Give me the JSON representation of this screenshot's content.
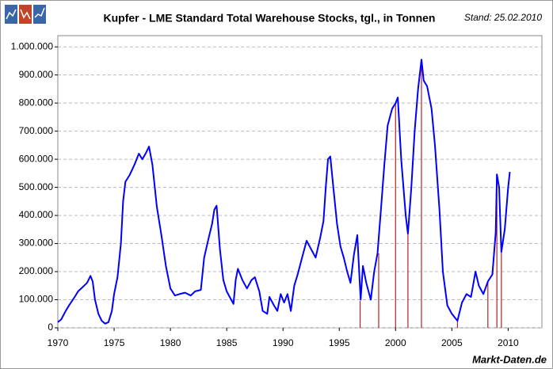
{
  "chart_data": {
    "type": "line",
    "title": "Kupfer - LME Standard Total Warehouse Stocks, tgl., in Tonnen",
    "subtitle": "Stand: 25.02.2010",
    "source": "Markt-Daten.de",
    "xlim": [
      1970,
      2013
    ],
    "xticks": [
      1970,
      1975,
      1980,
      1985,
      1990,
      1995,
      2000,
      2005,
      2010
    ],
    "ylim": [
      0,
      1040000
    ],
    "yticks": [
      0,
      {
        "value": 100000,
        "label": "100.000"
      },
      {
        "value": 200000,
        "label": "200.000"
      },
      {
        "value": 300000,
        "label": "300.000"
      },
      {
        "value": 400000,
        "label": "400.000"
      },
      {
        "value": 500000,
        "label": "500.000"
      },
      {
        "value": 600000,
        "label": "600.000"
      },
      {
        "value": 700000,
        "label": "700.000"
      },
      {
        "value": 800000,
        "label": "800.000"
      },
      {
        "value": 900000,
        "label": "900.000"
      },
      {
        "value": 1000000,
        "label": "1.000.000"
      }
    ],
    "grid": true,
    "series": [
      {
        "color": "#0000ff",
        "x": [
          1970.0,
          1970.3,
          1970.7,
          1971.0,
          1971.5,
          1971.8,
          1972.2,
          1972.6,
          1972.9,
          1973.1,
          1973.3,
          1973.6,
          1973.9,
          1974.2,
          1974.5,
          1974.8,
          1975.0,
          1975.3,
          1975.6,
          1975.8,
          1976.0,
          1976.4,
          1976.8,
          1977.2,
          1977.5,
          1977.8,
          1978.1,
          1978.4,
          1978.8,
          1979.2,
          1979.6,
          1980.0,
          1980.4,
          1980.8,
          1981.3,
          1981.8,
          1982.2,
          1982.7,
          1983.0,
          1983.4,
          1983.7,
          1983.9,
          1984.1,
          1984.4,
          1984.7,
          1985.0,
          1985.4,
          1985.6,
          1985.8,
          1986.0,
          1986.4,
          1986.8,
          1987.2,
          1987.5,
          1987.9,
          1988.2,
          1988.6,
          1988.8,
          1989.2,
          1989.5,
          1989.8,
          1990.1,
          1990.4,
          1990.7,
          1991.0,
          1991.3,
          1991.7,
          1992.1,
          1992.5,
          1992.9,
          1993.3,
          1993.6,
          1993.8,
          1994.0,
          1994.2,
          1994.5,
          1994.8,
          1995.1,
          1995.4,
          1995.7,
          1996.0,
          1996.3,
          1996.6,
          1996.9,
          1997.1,
          1997.4,
          1997.8,
          1998.1,
          1998.4,
          1998.7,
          1999.0,
          1999.3,
          1999.7,
          2000.0,
          2000.2,
          2000.5,
          2000.9,
          2001.1,
          2001.4,
          2001.7,
          2002.0,
          2002.3,
          2002.5,
          2002.8,
          2003.2,
          2003.5,
          2003.9,
          2004.2,
          2004.6,
          2005.0,
          2005.5,
          2005.9,
          2006.3,
          2006.7,
          2007.1,
          2007.4,
          2007.8,
          2008.2,
          2008.6,
          2008.9,
          2009.0,
          2009.2,
          2009.4,
          2009.7,
          2010.0,
          2010.15
        ],
        "values": [
          20000,
          30000,
          60000,
          80000,
          110000,
          130000,
          145000,
          160000,
          185000,
          165000,
          100000,
          50000,
          25000,
          15000,
          20000,
          60000,
          120000,
          180000,
          300000,
          450000,
          520000,
          545000,
          580000,
          620000,
          600000,
          620000,
          645000,
          580000,
          430000,
          330000,
          220000,
          140000,
          115000,
          120000,
          125000,
          115000,
          130000,
          135000,
          250000,
          320000,
          370000,
          420000,
          435000,
          280000,
          170000,
          130000,
          100000,
          85000,
          170000,
          210000,
          170000,
          140000,
          170000,
          180000,
          130000,
          60000,
          50000,
          110000,
          80000,
          60000,
          120000,
          90000,
          120000,
          60000,
          150000,
          190000,
          250000,
          310000,
          280000,
          250000,
          320000,
          380000,
          500000,
          600000,
          610000,
          490000,
          370000,
          290000,
          250000,
          200000,
          160000,
          260000,
          330000,
          100000,
          220000,
          160000,
          100000,
          200000,
          265000,
          420000,
          580000,
          720000,
          780000,
          800000,
          820000,
          600000,
          400000,
          335000,
          500000,
          700000,
          850000,
          955000,
          880000,
          860000,
          780000,
          650000,
          420000,
          200000,
          80000,
          50000,
          25000,
          90000,
          120000,
          110000,
          200000,
          150000,
          120000,
          165000,
          190000,
          340000,
          546000,
          500000,
          270000,
          350000,
          500000,
          555000
        ]
      }
    ],
    "vlines": {
      "color": "#b22222",
      "x": [
        1996.85,
        1998.5,
        2000.0,
        2001.1,
        2002.3,
        2005.5,
        2008.2,
        2009.0,
        2009.4
      ],
      "values": [
        96000,
        265000,
        800000,
        335000,
        955000,
        25000,
        165000,
        546000,
        270000
      ]
    }
  }
}
